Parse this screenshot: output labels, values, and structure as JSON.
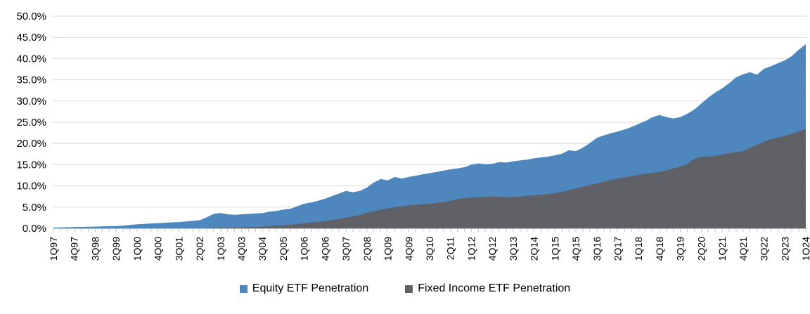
{
  "chart_data": {
    "type": "area",
    "title": "",
    "subtitle": "",
    "xlabel": "",
    "ylabel": "",
    "ylim": [
      0,
      50
    ],
    "y_tick_step": 5,
    "y_tick_labels": [
      "0.0%",
      "5.0%",
      "10.0%",
      "15.0%",
      "20.0%",
      "25.0%",
      "30.0%",
      "35.0%",
      "40.0%",
      "45.0%",
      "50.0%"
    ],
    "grid": "horizontal",
    "legend_position": "bottom",
    "x_unit": "quarter",
    "x_range": "1Q97 to 1Q24",
    "points_per_series": 109,
    "x_tick_every": 3,
    "x_tick_labels": [
      "1Q97",
      "4Q97",
      "3Q98",
      "2Q99",
      "1Q00",
      "4Q00",
      "3Q01",
      "2Q02",
      "1Q03",
      "4Q03",
      "3Q04",
      "2Q05",
      "1Q06",
      "4Q06",
      "3Q07",
      "2Q08",
      "1Q09",
      "4Q09",
      "3Q10",
      "2Q11",
      "1Q12",
      "4Q12",
      "3Q13",
      "2Q14",
      "1Q15",
      "4Q15",
      "3Q16",
      "2Q17",
      "1Q18",
      "4Q18",
      "3Q19",
      "2Q20",
      "1Q21",
      "4Q21",
      "3Q22",
      "2Q23",
      "1Q24"
    ],
    "series": [
      {
        "name": "Equity ETF Penetration",
        "color": "#4D87BE",
        "values": [
          0.15,
          0.2,
          0.25,
          0.3,
          0.33,
          0.36,
          0.4,
          0.45,
          0.5,
          0.55,
          0.65,
          0.8,
          0.95,
          1.05,
          1.15,
          1.2,
          1.3,
          1.4,
          1.45,
          1.6,
          1.75,
          1.9,
          2.6,
          3.4,
          3.6,
          3.3,
          3.2,
          3.3,
          3.4,
          3.5,
          3.6,
          3.9,
          4.1,
          4.4,
          4.6,
          5.2,
          5.8,
          6.1,
          6.5,
          7.0,
          7.6,
          8.2,
          8.8,
          8.5,
          8.8,
          9.6,
          10.8,
          11.6,
          11.3,
          12.1,
          11.7,
          12.1,
          12.4,
          12.7,
          13.0,
          13.3,
          13.6,
          13.9,
          14.1,
          14.4,
          15.0,
          15.3,
          15.1,
          15.2,
          15.6,
          15.5,
          15.8,
          16.0,
          16.2,
          16.5,
          16.7,
          16.9,
          17.2,
          17.6,
          18.4,
          18.2,
          19.0,
          20.1,
          21.3,
          21.9,
          22.4,
          22.8,
          23.3,
          23.9,
          24.6,
          25.3,
          26.2,
          26.7,
          26.2,
          25.9,
          26.2,
          27.0,
          28.0,
          29.4,
          30.8,
          32.0,
          33.0,
          34.2,
          35.6,
          36.3,
          36.8,
          36.2,
          37.6,
          38.2,
          38.9,
          39.6,
          40.6,
          42.1,
          43.4
        ]
      },
      {
        "name": "Fixed Income ETF Penetration",
        "color": "#5F6166",
        "values": [
          0,
          0,
          0,
          0,
          0,
          0,
          0,
          0,
          0,
          0,
          0,
          0,
          0,
          0,
          0,
          0,
          0,
          0,
          0,
          0,
          0,
          0,
          0.05,
          0.08,
          0.1,
          0.13,
          0.16,
          0.2,
          0.27,
          0.33,
          0.4,
          0.5,
          0.6,
          0.7,
          0.85,
          1.0,
          1.2,
          1.35,
          1.5,
          1.7,
          1.95,
          2.2,
          2.5,
          2.8,
          3.1,
          3.7,
          4.0,
          4.4,
          4.7,
          5.0,
          5.2,
          5.4,
          5.5,
          5.65,
          5.8,
          6.0,
          6.2,
          6.5,
          6.9,
          7.1,
          7.3,
          7.3,
          7.4,
          7.5,
          7.5,
          7.3,
          7.4,
          7.5,
          7.65,
          7.8,
          7.95,
          8.1,
          8.3,
          8.6,
          9.0,
          9.4,
          9.8,
          10.2,
          10.6,
          11.0,
          11.4,
          11.7,
          12.0,
          12.3,
          12.6,
          12.85,
          13.1,
          13.3,
          13.7,
          14.1,
          14.6,
          15.1,
          16.4,
          16.8,
          16.9,
          17.1,
          17.4,
          17.7,
          17.9,
          18.2,
          19.0,
          19.7,
          20.4,
          21.0,
          21.4,
          21.8,
          22.3,
          22.8,
          23.4
        ]
      }
    ],
    "colors": {
      "gridline": "#D9D9D9",
      "axis": "#BFBFBF",
      "label_text": "#000000"
    }
  },
  "legend": {
    "items": [
      {
        "label": "Equity ETF Penetration"
      },
      {
        "label": "Fixed Income ETF Penetration"
      }
    ]
  }
}
